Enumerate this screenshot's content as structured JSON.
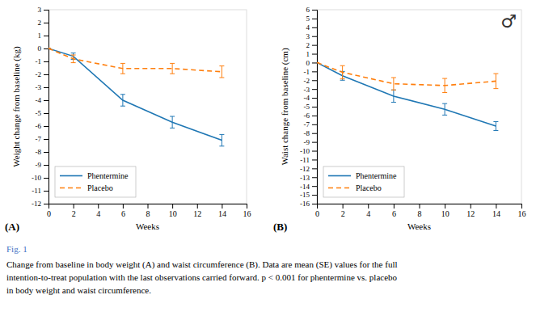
{
  "chart_data": [
    {
      "type": "line",
      "xlabel": "Weeks",
      "ylabel": "Weight change from baseline (kg)",
      "annotations": [
        "(A)"
      ],
      "x": [
        0,
        2,
        6,
        10,
        14
      ],
      "xlim": [
        0,
        16
      ],
      "ylim": [
        -12,
        3
      ],
      "xticks": [
        0,
        2,
        4,
        6,
        8,
        10,
        12,
        14,
        16
      ],
      "yticks": [
        3,
        2,
        1,
        0,
        -1,
        -2,
        -3,
        -4,
        -5,
        -6,
        -7,
        -8,
        -9,
        -10,
        -11,
        -12
      ],
      "legend": "lower left",
      "series": [
        {
          "name": "Phentermine",
          "line_style": "solid",
          "values": [
            0.0,
            -0.6,
            -4.0,
            -5.7,
            -7.1
          ],
          "errors": [
            0.0,
            0.25,
            0.45,
            0.45,
            0.45
          ]
        },
        {
          "name": "Placebo",
          "line_style": "dashed",
          "values": [
            0.0,
            -0.8,
            -1.55,
            -1.55,
            -1.8
          ],
          "errors": [
            0.0,
            0.3,
            0.4,
            0.4,
            0.45
          ]
        }
      ]
    },
    {
      "type": "line",
      "xlabel": "Weeks",
      "ylabel": "Waist change from baseline (cm)",
      "annotations": [
        "(B)",
        "♂"
      ],
      "x": [
        0,
        2,
        6,
        10,
        14
      ],
      "xlim": [
        0,
        16
      ],
      "ylim": [
        -16,
        6
      ],
      "xticks": [
        0,
        2,
        4,
        6,
        8,
        10,
        12,
        14,
        16
      ],
      "yticks": [
        6,
        5,
        4,
        3,
        2,
        1,
        0,
        -1,
        -2,
        -3,
        -4,
        -5,
        -6,
        -7,
        -8,
        -9,
        -10,
        -11,
        -12,
        -13,
        -14,
        -15,
        -16
      ],
      "legend": "lower left",
      "series": [
        {
          "name": "Phentermine",
          "line_style": "solid",
          "values": [
            0.0,
            -1.5,
            -3.8,
            -5.3,
            -7.2
          ],
          "errors": [
            0.0,
            0.5,
            0.7,
            0.65,
            0.5
          ]
        },
        {
          "name": "Placebo",
          "line_style": "dashed",
          "values": [
            0.0,
            -1.1,
            -2.4,
            -2.6,
            -2.1
          ],
          "errors": [
            0.0,
            0.75,
            0.7,
            0.8,
            0.85
          ]
        }
      ]
    }
  ],
  "annotations": [
    {
      "text": "Fig. 1",
      "color": "#4472c4"
    },
    {
      "text": "Change from baseline in body weight (A) and waist circumference (B). Data are mean (SE) values for the full\nintention-to-treat population with the last observations carried forward. p < 0.001 for phentermine vs. placebo\nin body weight and waist circumference."
    }
  ]
}
